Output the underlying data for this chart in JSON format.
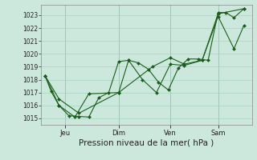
{
  "bg_color": "#cce8dc",
  "grid_color": "#a8d4c4",
  "line_color": "#1a5e1a",
  "marker_color": "#1a5e1a",
  "xlabel": "Pression niveau de la mer( hPa )",
  "xlabel_fontsize": 7.5,
  "yticks": [
    1015,
    1016,
    1017,
    1018,
    1019,
    1020,
    1021,
    1022,
    1023
  ],
  "ylim": [
    1014.5,
    1023.8
  ],
  "xtick_labels": [
    "Jeu",
    "Dim",
    "Ven",
    "Sam"
  ],
  "xtick_positions": [
    0.1,
    0.37,
    0.63,
    0.87
  ],
  "xlim": [
    -0.02,
    1.04
  ],
  "series": [
    {
      "x": [
        0.0,
        0.03,
        0.07,
        0.12,
        0.17,
        0.22,
        0.27,
        0.32,
        0.37,
        0.42,
        0.47,
        0.52,
        0.57,
        0.62,
        0.67,
        0.72,
        0.77,
        0.82,
        0.87,
        0.91,
        0.95,
        1.0
      ],
      "y": [
        1018.3,
        1017.1,
        1016.0,
        1015.2,
        1015.15,
        1015.1,
        1016.6,
        1017.0,
        1019.4,
        1019.5,
        1019.3,
        1018.8,
        1017.8,
        1017.2,
        1018.9,
        1019.6,
        1019.6,
        1019.5,
        1023.2,
        1023.2,
        1022.8,
        1023.5
      ]
    },
    {
      "x": [
        0.0,
        0.07,
        0.15,
        0.22,
        0.37,
        0.42,
        0.49,
        0.56,
        0.63,
        0.7,
        0.79,
        0.87,
        0.95,
        1.0
      ],
      "y": [
        1018.3,
        1016.0,
        1015.1,
        1016.9,
        1017.0,
        1019.5,
        1018.0,
        1017.0,
        1019.2,
        1019.1,
        1019.5,
        1022.9,
        1020.4,
        1022.2
      ]
    },
    {
      "x": [
        0.0,
        0.07,
        0.17,
        0.37,
        0.54,
        0.63,
        0.7,
        0.79,
        0.87,
        1.0
      ],
      "y": [
        1018.3,
        1016.5,
        1015.4,
        1017.0,
        1019.0,
        1019.7,
        1019.2,
        1019.5,
        1023.1,
        1023.5
      ]
    }
  ]
}
